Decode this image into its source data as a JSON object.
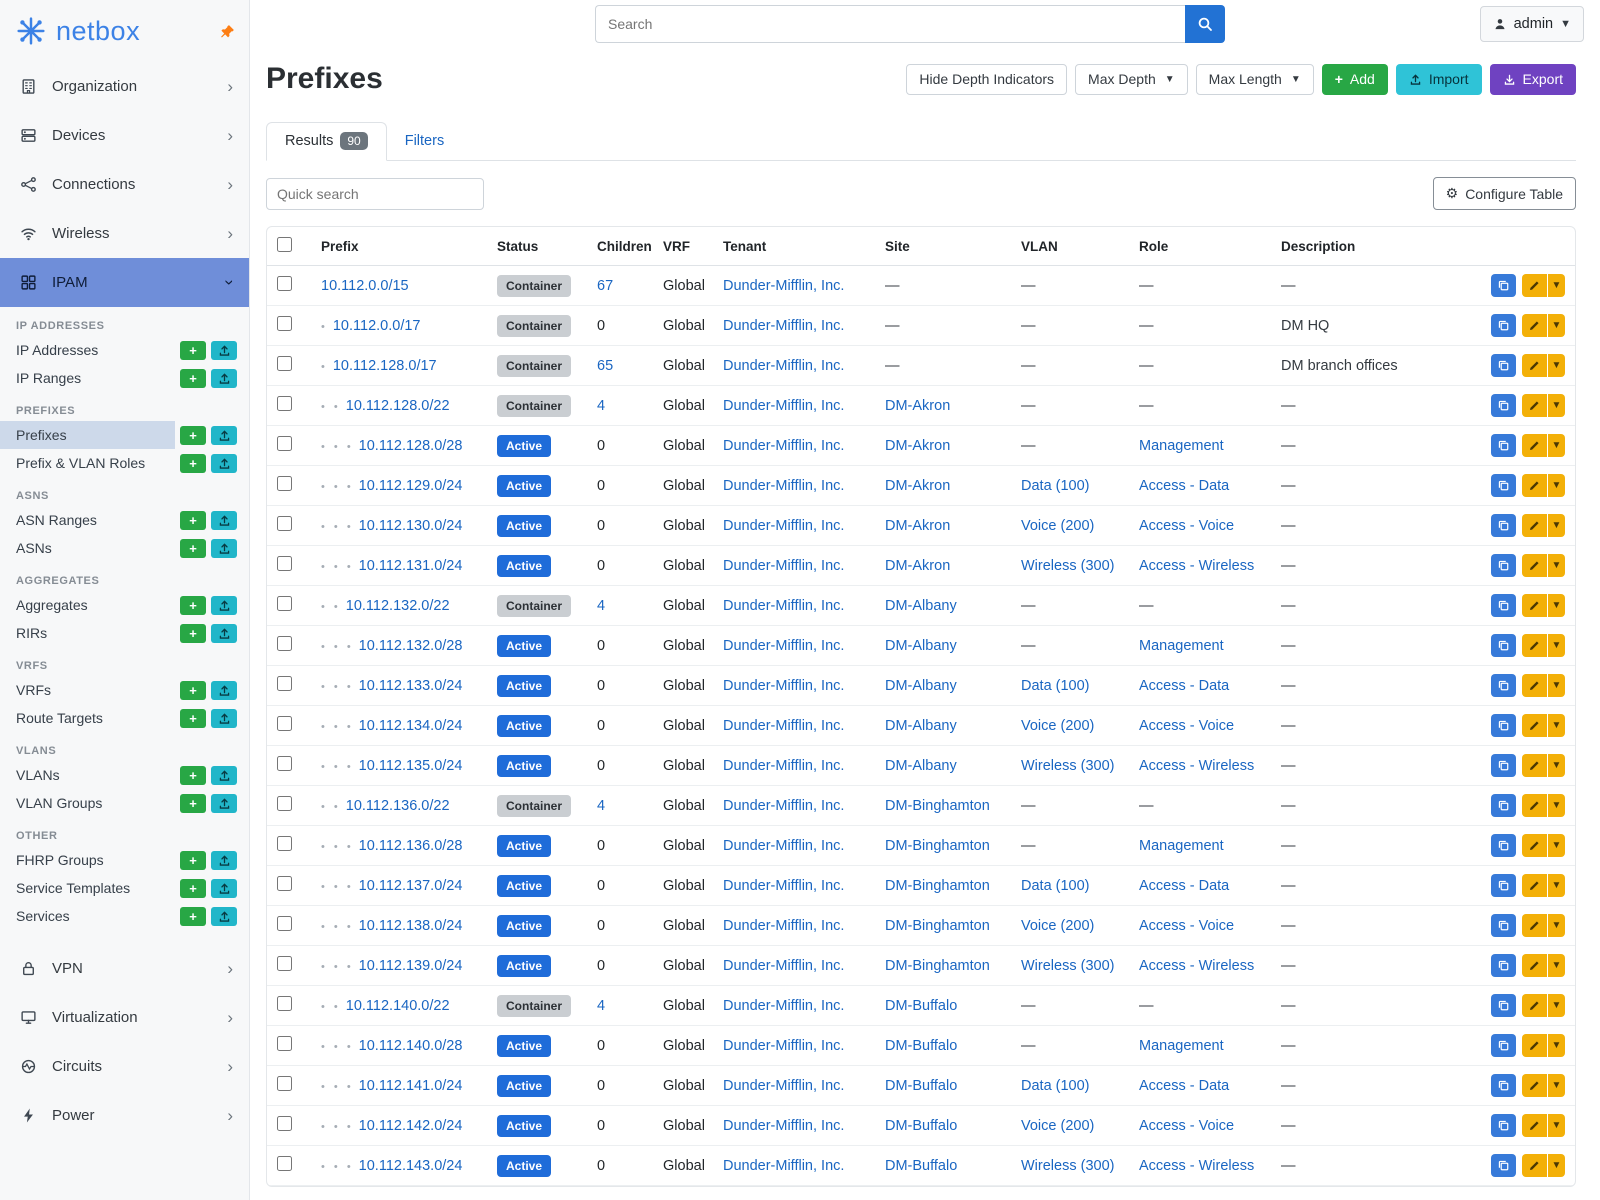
{
  "brand": {
    "name": "netbox"
  },
  "colors": {
    "brand_blue": "#3c82e6",
    "nav_active_bg": "#6f8ed9",
    "subitem_active_bg": "#cdd9ea",
    "link_blue": "#1a66c2",
    "status_active_badge": "#1f6cd9",
    "status_container_badge": "#caced2",
    "add_green": "#28a745",
    "import_cyan": "#2fc3d7",
    "export_purple": "#6f42c1",
    "edit_yellow": "#f3b008",
    "copy_blue": "#377ad9",
    "pin_orange": "#fd7e14"
  },
  "topbar": {
    "search_placeholder": "Search",
    "user_label": "admin"
  },
  "sidebar": {
    "top_items": [
      {
        "label": "Organization",
        "icon": "building"
      },
      {
        "label": "Devices",
        "icon": "server"
      },
      {
        "label": "Connections",
        "icon": "plug"
      },
      {
        "label": "Wireless",
        "icon": "wifi"
      }
    ],
    "ipam_label": "IPAM",
    "ipam_sections": [
      {
        "title": "IP ADDRESSES",
        "items": [
          {
            "label": "IP Addresses"
          },
          {
            "label": "IP Ranges"
          }
        ]
      },
      {
        "title": "PREFIXES",
        "items": [
          {
            "label": "Prefixes",
            "active": true
          },
          {
            "label": "Prefix & VLAN Roles"
          }
        ]
      },
      {
        "title": "ASNS",
        "items": [
          {
            "label": "ASN Ranges"
          },
          {
            "label": "ASNs"
          }
        ]
      },
      {
        "title": "AGGREGATES",
        "items": [
          {
            "label": "Aggregates"
          },
          {
            "label": "RIRs"
          }
        ]
      },
      {
        "title": "VRFS",
        "items": [
          {
            "label": "VRFs"
          },
          {
            "label": "Route Targets"
          }
        ]
      },
      {
        "title": "VLANS",
        "items": [
          {
            "label": "VLANs"
          },
          {
            "label": "VLAN Groups"
          }
        ]
      },
      {
        "title": "OTHER",
        "items": [
          {
            "label": "FHRP Groups"
          },
          {
            "label": "Service Templates"
          },
          {
            "label": "Services"
          }
        ]
      }
    ],
    "bottom_items": [
      {
        "label": "VPN",
        "icon": "lock"
      },
      {
        "label": "Virtualization",
        "icon": "monitor"
      },
      {
        "label": "Circuits",
        "icon": "circuit"
      },
      {
        "label": "Power",
        "icon": "power"
      }
    ]
  },
  "page": {
    "title": "Prefixes",
    "toolbar": {
      "hide_depth_label": "Hide Depth Indicators",
      "max_depth_label": "Max Depth",
      "max_length_label": "Max Length",
      "add_label": "Add",
      "import_label": "Import",
      "export_label": "Export"
    },
    "tabs": [
      {
        "label": "Results",
        "badge": "90",
        "active": true
      },
      {
        "label": "Filters",
        "active": false
      }
    ],
    "quick_search_placeholder": "Quick search",
    "configure_table_label": "Configure Table"
  },
  "table": {
    "columns": [
      "Prefix",
      "Status",
      "Children",
      "VRF",
      "Tenant",
      "Site",
      "VLAN",
      "Role",
      "Description"
    ],
    "rows": [
      {
        "depth": 0,
        "prefix": "10.112.0.0/15",
        "status": "Container",
        "children": "67",
        "vrf": "Global",
        "tenant": "Dunder-Mifflin, Inc.",
        "site": "—",
        "vlan": "—",
        "role": "—",
        "description": "—"
      },
      {
        "depth": 1,
        "prefix": "10.112.0.0/17",
        "status": "Container",
        "children": "0",
        "vrf": "Global",
        "tenant": "Dunder-Mifflin, Inc.",
        "site": "—",
        "vlan": "—",
        "role": "—",
        "description": "DM HQ"
      },
      {
        "depth": 1,
        "prefix": "10.112.128.0/17",
        "status": "Container",
        "children": "65",
        "vrf": "Global",
        "tenant": "Dunder-Mifflin, Inc.",
        "site": "—",
        "vlan": "—",
        "role": "—",
        "description": "DM branch offices"
      },
      {
        "depth": 2,
        "prefix": "10.112.128.0/22",
        "status": "Container",
        "children": "4",
        "vrf": "Global",
        "tenant": "Dunder-Mifflin, Inc.",
        "site": "DM-Akron",
        "vlan": "—",
        "role": "—",
        "description": "—"
      },
      {
        "depth": 3,
        "prefix": "10.112.128.0/28",
        "status": "Active",
        "children": "0",
        "vrf": "Global",
        "tenant": "Dunder-Mifflin, Inc.",
        "site": "DM-Akron",
        "vlan": "—",
        "role": "Management",
        "description": "—"
      },
      {
        "depth": 3,
        "prefix": "10.112.129.0/24",
        "status": "Active",
        "children": "0",
        "vrf": "Global",
        "tenant": "Dunder-Mifflin, Inc.",
        "site": "DM-Akron",
        "vlan": "Data (100)",
        "role": "Access - Data",
        "description": "—"
      },
      {
        "depth": 3,
        "prefix": "10.112.130.0/24",
        "status": "Active",
        "children": "0",
        "vrf": "Global",
        "tenant": "Dunder-Mifflin, Inc.",
        "site": "DM-Akron",
        "vlan": "Voice (200)",
        "role": "Access - Voice",
        "description": "—"
      },
      {
        "depth": 3,
        "prefix": "10.112.131.0/24",
        "status": "Active",
        "children": "0",
        "vrf": "Global",
        "tenant": "Dunder-Mifflin, Inc.",
        "site": "DM-Akron",
        "vlan": "Wireless (300)",
        "role": "Access - Wireless",
        "description": "—"
      },
      {
        "depth": 2,
        "prefix": "10.112.132.0/22",
        "status": "Container",
        "children": "4",
        "vrf": "Global",
        "tenant": "Dunder-Mifflin, Inc.",
        "site": "DM-Albany",
        "vlan": "—",
        "role": "—",
        "description": "—"
      },
      {
        "depth": 3,
        "prefix": "10.112.132.0/28",
        "status": "Active",
        "children": "0",
        "vrf": "Global",
        "tenant": "Dunder-Mifflin, Inc.",
        "site": "DM-Albany",
        "vlan": "—",
        "role": "Management",
        "description": "—"
      },
      {
        "depth": 3,
        "prefix": "10.112.133.0/24",
        "status": "Active",
        "children": "0",
        "vrf": "Global",
        "tenant": "Dunder-Mifflin, Inc.",
        "site": "DM-Albany",
        "vlan": "Data (100)",
        "role": "Access - Data",
        "description": "—"
      },
      {
        "depth": 3,
        "prefix": "10.112.134.0/24",
        "status": "Active",
        "children": "0",
        "vrf": "Global",
        "tenant": "Dunder-Mifflin, Inc.",
        "site": "DM-Albany",
        "vlan": "Voice (200)",
        "role": "Access - Voice",
        "description": "—"
      },
      {
        "depth": 3,
        "prefix": "10.112.135.0/24",
        "status": "Active",
        "children": "0",
        "vrf": "Global",
        "tenant": "Dunder-Mifflin, Inc.",
        "site": "DM-Albany",
        "vlan": "Wireless (300)",
        "role": "Access - Wireless",
        "description": "—"
      },
      {
        "depth": 2,
        "prefix": "10.112.136.0/22",
        "status": "Container",
        "children": "4",
        "vrf": "Global",
        "tenant": "Dunder-Mifflin, Inc.",
        "site": "DM-Binghamton",
        "vlan": "—",
        "role": "—",
        "description": "—"
      },
      {
        "depth": 3,
        "prefix": "10.112.136.0/28",
        "status": "Active",
        "children": "0",
        "vrf": "Global",
        "tenant": "Dunder-Mifflin, Inc.",
        "site": "DM-Binghamton",
        "vlan": "—",
        "role": "Management",
        "description": "—"
      },
      {
        "depth": 3,
        "prefix": "10.112.137.0/24",
        "status": "Active",
        "children": "0",
        "vrf": "Global",
        "tenant": "Dunder-Mifflin, Inc.",
        "site": "DM-Binghamton",
        "vlan": "Data (100)",
        "role": "Access - Data",
        "description": "—"
      },
      {
        "depth": 3,
        "prefix": "10.112.138.0/24",
        "status": "Active",
        "children": "0",
        "vrf": "Global",
        "tenant": "Dunder-Mifflin, Inc.",
        "site": "DM-Binghamton",
        "vlan": "Voice (200)",
        "role": "Access - Voice",
        "description": "—"
      },
      {
        "depth": 3,
        "prefix": "10.112.139.0/24",
        "status": "Active",
        "children": "0",
        "vrf": "Global",
        "tenant": "Dunder-Mifflin, Inc.",
        "site": "DM-Binghamton",
        "vlan": "Wireless (300)",
        "role": "Access - Wireless",
        "description": "—"
      },
      {
        "depth": 2,
        "prefix": "10.112.140.0/22",
        "status": "Container",
        "children": "4",
        "vrf": "Global",
        "tenant": "Dunder-Mifflin, Inc.",
        "site": "DM-Buffalo",
        "vlan": "—",
        "role": "—",
        "description": "—"
      },
      {
        "depth": 3,
        "prefix": "10.112.140.0/28",
        "status": "Active",
        "children": "0",
        "vrf": "Global",
        "tenant": "Dunder-Mifflin, Inc.",
        "site": "DM-Buffalo",
        "vlan": "—",
        "role": "Management",
        "description": "—"
      },
      {
        "depth": 3,
        "prefix": "10.112.141.0/24",
        "status": "Active",
        "children": "0",
        "vrf": "Global",
        "tenant": "Dunder-Mifflin, Inc.",
        "site": "DM-Buffalo",
        "vlan": "Data (100)",
        "role": "Access - Data",
        "description": "—"
      },
      {
        "depth": 3,
        "prefix": "10.112.142.0/24",
        "status": "Active",
        "children": "0",
        "vrf": "Global",
        "tenant": "Dunder-Mifflin, Inc.",
        "site": "DM-Buffalo",
        "vlan": "Voice (200)",
        "role": "Access - Voice",
        "description": "—"
      },
      {
        "depth": 3,
        "prefix": "10.112.143.0/24",
        "status": "Active",
        "children": "0",
        "vrf": "Global",
        "tenant": "Dunder-Mifflin, Inc.",
        "site": "DM-Buffalo",
        "vlan": "Wireless (300)",
        "role": "Access - Wireless",
        "description": "—"
      }
    ]
  }
}
